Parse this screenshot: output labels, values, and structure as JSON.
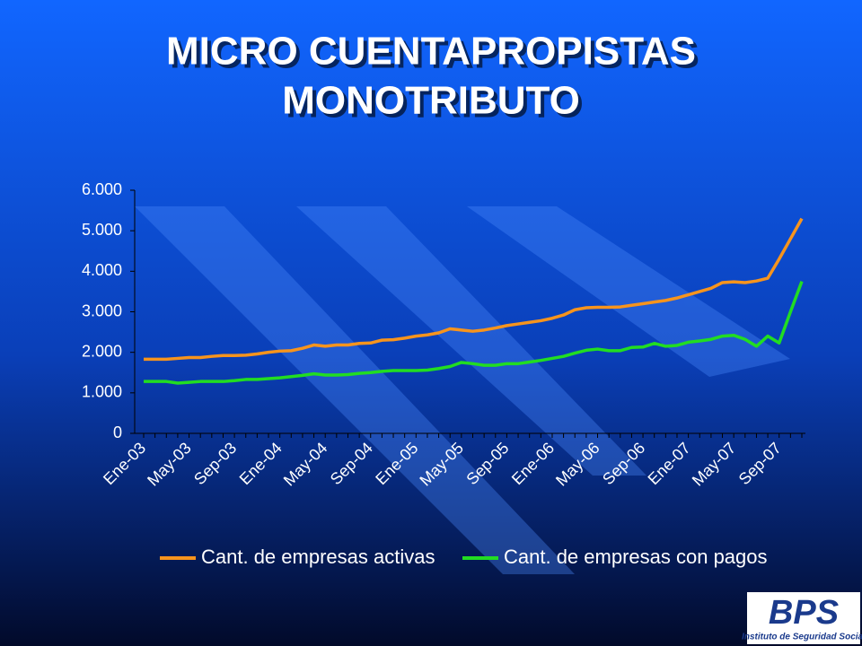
{
  "chart_data": {
    "type": "line",
    "title": "MICRO CUENTAPROPISTAS",
    "subtitle": "MONOTRIBUTO",
    "categories": [
      "Ene-03",
      null,
      null,
      null,
      "May-03",
      null,
      null,
      null,
      "Sep-03",
      null,
      null,
      null,
      "Ene-04",
      null,
      null,
      null,
      "May-04",
      null,
      null,
      null,
      "Sep-04",
      null,
      null,
      null,
      "Ene-05",
      null,
      null,
      null,
      "May-05",
      null,
      null,
      null,
      "Sep-05",
      null,
      null,
      null,
      "Ene-06",
      null,
      null,
      null,
      "May-06",
      null,
      null,
      null,
      "Sep-06",
      null,
      null,
      null,
      "Ene-07",
      null,
      null,
      null,
      "May-07",
      null,
      null,
      null,
      "Sep-07",
      null,
      null
    ],
    "series": [
      {
        "name": "Cant. de empresas activas",
        "color": "#f7941d",
        "values": [
          1830,
          1830,
          1830,
          1850,
          1870,
          1870,
          1900,
          1920,
          1920,
          1930,
          1960,
          2000,
          2030,
          2040,
          2100,
          2180,
          2150,
          2180,
          2180,
          2220,
          2230,
          2300,
          2310,
          2350,
          2400,
          2430,
          2480,
          2580,
          2550,
          2520,
          2550,
          2600,
          2660,
          2700,
          2740,
          2780,
          2840,
          2920,
          3050,
          3100,
          3110,
          3110,
          3120,
          3160,
          3200,
          3240,
          3280,
          3340,
          3420,
          3500,
          3580,
          3720,
          3740,
          3720,
          3760,
          3830,
          4300,
          4800,
          5300
        ]
      },
      {
        "name": "Cant. de empresas con pagos",
        "color": "#22dd22",
        "values": [
          1280,
          1280,
          1280,
          1240,
          1260,
          1280,
          1280,
          1280,
          1300,
          1330,
          1330,
          1350,
          1370,
          1400,
          1430,
          1470,
          1440,
          1440,
          1450,
          1480,
          1500,
          1530,
          1550,
          1550,
          1550,
          1560,
          1600,
          1650,
          1750,
          1720,
          1680,
          1680,
          1720,
          1720,
          1760,
          1800,
          1850,
          1900,
          1980,
          2050,
          2080,
          2040,
          2040,
          2120,
          2130,
          2220,
          2150,
          2170,
          2250,
          2280,
          2320,
          2400,
          2420,
          2320,
          2150,
          2400,
          2230,
          3000,
          3750
        ]
      }
    ],
    "ylim": [
      0,
      6000
    ],
    "yticks": [
      0,
      {
        "value": 1000,
        "label": "1.000"
      },
      {
        "value": 2000,
        "label": "2.000"
      },
      {
        "value": 3000,
        "label": "3.000"
      },
      {
        "value": 4000,
        "label": "4.000"
      },
      {
        "value": 5000,
        "label": "5.000"
      },
      {
        "value": 6000,
        "label": "6.000"
      }
    ],
    "legend": "bottom"
  },
  "logo": {
    "text": "BPS",
    "caption": "Instituto de Seguridad Social"
  }
}
